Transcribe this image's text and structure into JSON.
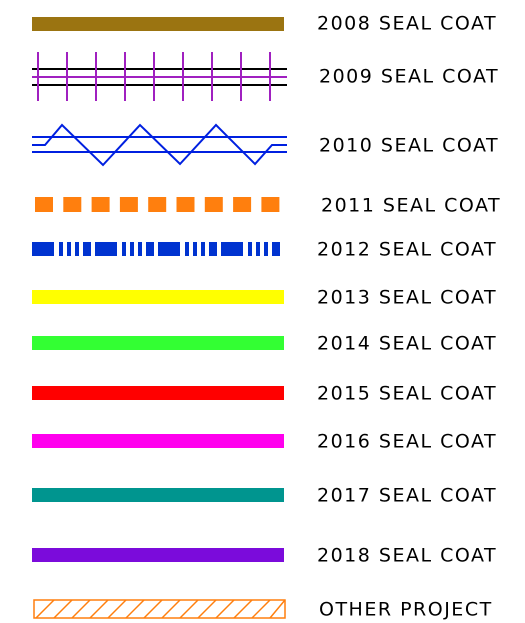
{
  "legend": {
    "items": [
      {
        "label": "2008 SEAL COAT"
      },
      {
        "label": "2009 SEAL COAT"
      },
      {
        "label": "2010 SEAL COAT"
      },
      {
        "label": "2011 SEAL COAT"
      },
      {
        "label": "2012 SEAL COAT"
      },
      {
        "label": "2013 SEAL COAT"
      },
      {
        "label": "2014 SEAL COAT"
      },
      {
        "label": "2015 SEAL COAT"
      },
      {
        "label": "2016 SEAL COAT"
      },
      {
        "label": "2017 SEAL COAT"
      },
      {
        "label": "2018 SEAL COAT"
      },
      {
        "label": "OTHER PROJECT"
      }
    ]
  }
}
